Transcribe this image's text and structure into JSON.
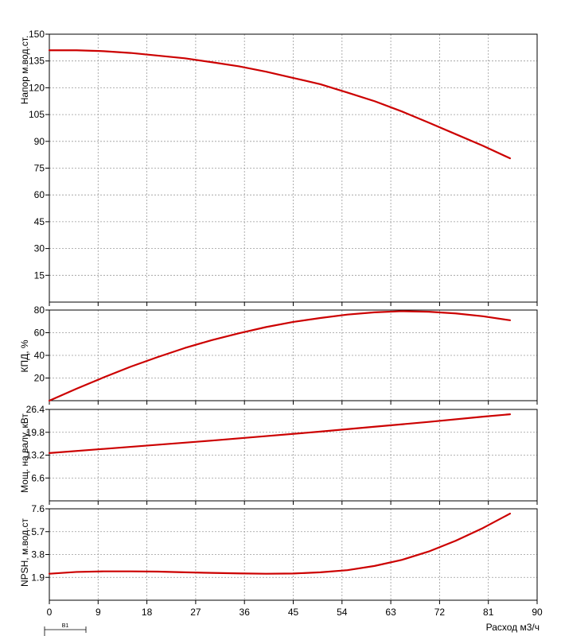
{
  "chart_data": [
    {
      "type": "line",
      "ylabel": "Напор м.вод.ст.",
      "xlim": [
        0,
        90
      ],
      "ylim": [
        0,
        150
      ],
      "yticks": [
        "150",
        "135",
        "120",
        "105",
        "90",
        "75",
        "60",
        "45",
        "30",
        "15"
      ],
      "grid": true,
      "color": "#cc0000",
      "series": [
        {
          "x": [
            0,
            5,
            10,
            15,
            20,
            25,
            30,
            35,
            40,
            45,
            50,
            55,
            60,
            65,
            70,
            75,
            80,
            85
          ],
          "y": [
            141,
            141,
            140.5,
            139.5,
            138,
            136.5,
            134.3,
            132,
            129,
            125.5,
            122,
            117.3,
            112.5,
            106.8,
            100.5,
            94,
            87.5,
            80.5
          ]
        }
      ]
    },
    {
      "type": "line",
      "ylabel": "КПД, %",
      "xlim": [
        0,
        90
      ],
      "ylim": [
        0,
        80
      ],
      "yticks": [
        "80",
        "60",
        "40",
        "20"
      ],
      "grid": true,
      "color": "#cc0000",
      "series": [
        {
          "x": [
            0,
            5,
            10,
            15,
            20,
            25,
            30,
            35,
            40,
            45,
            50,
            55,
            60,
            65,
            70,
            75,
            80,
            85
          ],
          "y": [
            0,
            10.5,
            20.5,
            30,
            38.5,
            46.5,
            53.5,
            59.5,
            65,
            69.5,
            73,
            76,
            78,
            79,
            78.5,
            77,
            74.5,
            71
          ]
        }
      ]
    },
    {
      "type": "line",
      "ylabel": "Мощ. на валу, кВт",
      "xlim": [
        0,
        90
      ],
      "ylim": [
        0,
        26.4
      ],
      "yticks": [
        "26.4",
        "19.8",
        "13.2",
        "6.6"
      ],
      "grid": true,
      "color": "#cc0000",
      "series": [
        {
          "x": [
            0,
            10,
            20,
            30,
            40,
            50,
            60,
            70,
            80,
            85
          ],
          "y": [
            13.8,
            15,
            16.2,
            17.4,
            18.7,
            20,
            21.4,
            22.8,
            24.3,
            25
          ]
        }
      ]
    },
    {
      "type": "line",
      "ylabel": "NPSH, м.вод.ст",
      "xlabel": "Расход м3/ч",
      "xlim": [
        0,
        90
      ],
      "ylim": [
        0,
        7.6
      ],
      "yticks": [
        "7.6",
        "5.7",
        "3.8",
        "1.9"
      ],
      "xticks": [
        "0",
        "9",
        "18",
        "27",
        "36",
        "45",
        "54",
        "63",
        "72",
        "81",
        "90"
      ],
      "grid": true,
      "color": "#cc0000",
      "series": [
        {
          "x": [
            0,
            5,
            10,
            15,
            20,
            25,
            30,
            35,
            40,
            45,
            50,
            55,
            60,
            65,
            70,
            75,
            80,
            85
          ],
          "y": [
            2.2,
            2.35,
            2.4,
            2.4,
            2.38,
            2.32,
            2.27,
            2.23,
            2.2,
            2.22,
            2.32,
            2.5,
            2.85,
            3.35,
            4.05,
            4.95,
            6.0,
            7.2
          ]
        }
      ]
    }
  ],
  "marker": {
    "label": "В1"
  }
}
